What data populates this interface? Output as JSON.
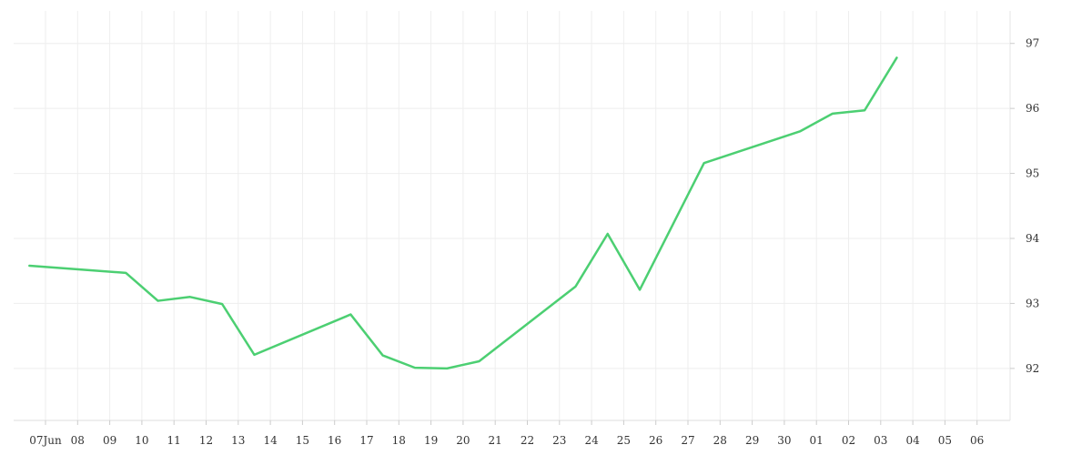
{
  "chart_data": {
    "type": "line",
    "x": [
      "2023-06-07",
      "2023-06-10",
      "2023-06-11",
      "2023-06-12",
      "2023-06-13",
      "2023-06-14",
      "2023-06-17",
      "2023-06-18",
      "2023-06-19",
      "2023-06-20",
      "2023-06-21",
      "2023-06-24",
      "2023-06-25",
      "2023-06-26",
      "2023-06-28",
      "2023-07-01",
      "2023-07-02",
      "2023-07-03",
      "2023-07-04"
    ],
    "series": [
      {
        "values": [
          93.58,
          93.47,
          93.04,
          93.1,
          92.99,
          92.21,
          92.83,
          92.2,
          92.01,
          92.0,
          92.11,
          93.26,
          94.07,
          93.21,
          95.16,
          95.65,
          95.92,
          95.97,
          96.78
        ],
        "color": "#4ccf72"
      }
    ],
    "x_tick_labels": [
      "07Jun",
      "08",
      "09",
      "10",
      "11",
      "12",
      "13",
      "14",
      "15",
      "16",
      "17",
      "18",
      "19",
      "20",
      "21",
      "22",
      "23",
      "24",
      "25",
      "26",
      "27",
      "28",
      "29",
      "30",
      "01",
      "02",
      "03",
      "04",
      "05",
      "06"
    ],
    "y_ticks": [
      92,
      93,
      94,
      95,
      96,
      97
    ],
    "y_tick_labels": [
      "92",
      "93",
      "94",
      "95",
      "96",
      "97"
    ],
    "ylim": [
      91.2,
      97.5
    ],
    "grid": true,
    "y_axis_position": "right",
    "title": "",
    "xlabel": "",
    "ylabel": ""
  }
}
